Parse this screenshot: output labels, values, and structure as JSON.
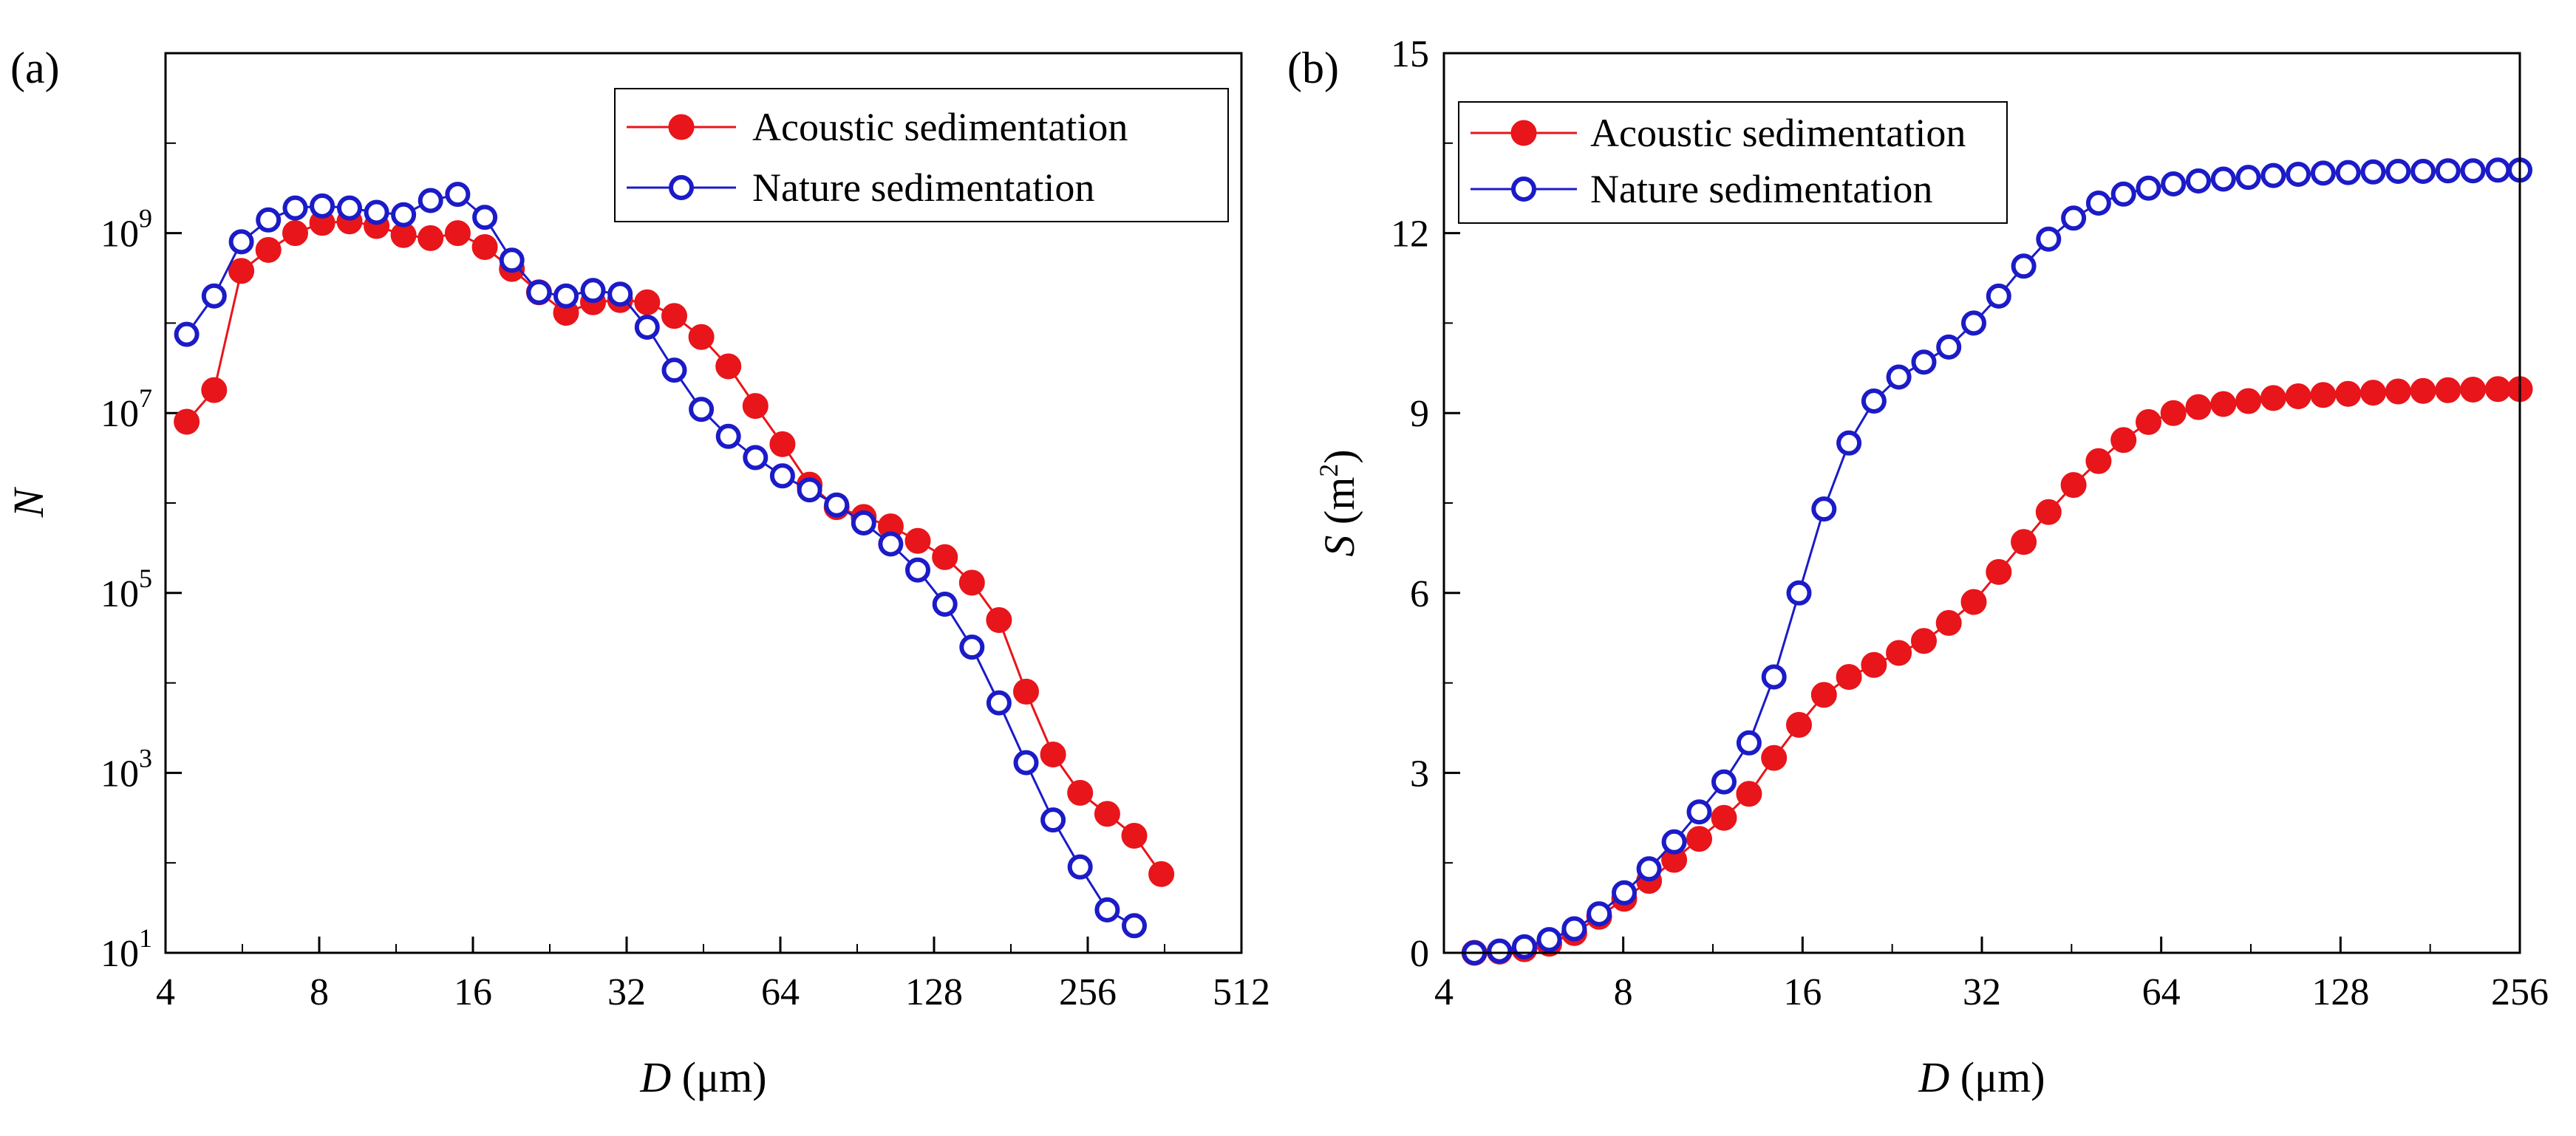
{
  "chart_data": [
    {
      "type": "line",
      "panel_label": "(a)",
      "xlabel": "D (μm)",
      "xlabel_var": "D",
      "xlabel_unit": " (μm)",
      "ylabel": "N",
      "x_scale": "log2",
      "y_scale": "log10",
      "xlim": [
        4,
        512
      ],
      "ylim": [
        10,
        100000000000
      ],
      "x_ticks": [
        4,
        8,
        16,
        32,
        64,
        128,
        256,
        512
      ],
      "x_tick_labels": [
        "4",
        "8",
        "16",
        "32",
        "64",
        "128",
        "256",
        "512"
      ],
      "y_ticks": [
        10,
        1000,
        100000,
        10000000,
        1000000000
      ],
      "y_tick_labels": [
        {
          "base": "10",
          "exp": "1"
        },
        {
          "base": "10",
          "exp": "3"
        },
        {
          "base": "10",
          "exp": "5"
        },
        {
          "base": "10",
          "exp": "7"
        },
        {
          "base": "10",
          "exp": "9"
        }
      ],
      "legend_position": "top-right",
      "series": [
        {
          "name": "Acoustic sedimentation",
          "color": "#e8151b",
          "marker": "filled-circle",
          "x": [
            4.4,
            4.98,
            5.63,
            6.36,
            7.18,
            8.11,
            9.17,
            10.36,
            11.7,
            13.22,
            14.94,
            16.88,
            19.07,
            21.55,
            24.35,
            27.5,
            31.08,
            35.11,
            39.67,
            44.82,
            50.64,
            57.21,
            64.63,
            73.02,
            82.5,
            93.2,
            105.3,
            118.97,
            134.41,
            151.85,
            171.56,
            193.82,
            218.98,
            247.39,
            279.5,
            315.77,
            356.74
          ],
          "y": [
            8000000,
            18000000,
            380000000,
            650000000,
            1000000000,
            1300000000,
            1350000000,
            1200000000,
            950000000,
            880000000,
            1000000000,
            700000000,
            400000000,
            220000000,
            130000000,
            170000000,
            180000000,
            170000000,
            120000000,
            70000000,
            33000000,
            12000000,
            4500000,
            1600000,
            900000,
            700000,
            550000,
            380000,
            250000,
            130000,
            50000,
            8000,
            1600,
            600,
            350,
            200,
            75
          ]
        },
        {
          "name": "Nature sedimentation",
          "color": "#1b1bc8",
          "marker": "open-circle",
          "x": [
            4.4,
            4.98,
            5.63,
            6.36,
            7.18,
            8.11,
            9.17,
            10.36,
            11.7,
            13.22,
            14.94,
            16.88,
            19.07,
            21.55,
            24.35,
            27.5,
            31.08,
            35.11,
            39.67,
            44.82,
            50.64,
            57.21,
            64.63,
            73.02,
            82.5,
            93.2,
            105.3,
            118.97,
            134.41,
            151.85,
            171.56,
            193.82,
            218.98,
            247.39,
            279.5,
            315.77
          ],
          "y": [
            75000000,
            200000000,
            800000000,
            1400000000,
            1900000000,
            2000000000,
            1900000000,
            1700000000,
            1600000000,
            2300000000,
            2700000000,
            1500000000,
            500000000,
            220000000,
            200000000,
            230000000,
            210000000,
            90000000,
            30000000,
            11000000,
            5500000,
            3200000,
            2000000,
            1400000,
            950000,
            600000,
            350000,
            180000,
            75000,
            25000,
            6000,
            1300,
            300,
            90,
            30,
            20
          ]
        }
      ]
    },
    {
      "type": "line",
      "panel_label": "(b)",
      "xlabel": "D (μm)",
      "xlabel_var": "D",
      "xlabel_unit": " (μm)",
      "ylabel": "S (m2)",
      "ylabel_var": "S",
      "ylabel_unit_pre": " (m",
      "ylabel_unit_sup": "2",
      "ylabel_unit_post": ")",
      "x_scale": "log2",
      "y_scale": "linear",
      "xlim": [
        4,
        256
      ],
      "ylim": [
        0,
        15
      ],
      "x_ticks": [
        4,
        8,
        16,
        32,
        64,
        128,
        256
      ],
      "x_tick_labels": [
        "4",
        "8",
        "16",
        "32",
        "64",
        "128",
        "256"
      ],
      "y_ticks": [
        0,
        3,
        6,
        9,
        12,
        15
      ],
      "y_tick_labels": [
        "0",
        "3",
        "6",
        "9",
        "12",
        "15"
      ],
      "legend_position": "top-left",
      "series": [
        {
          "name": "Acoustic sedimentation",
          "color": "#e8151b",
          "marker": "filled-circle",
          "x": [
            4.5,
            4.96,
            5.46,
            6.01,
            6.62,
            7.29,
            8.03,
            8.84,
            9.74,
            10.73,
            11.81,
            13.01,
            14.33,
            15.78,
            17.38,
            19.14,
            21.08,
            23.21,
            25.57,
            28.16,
            31.01,
            34.15,
            37.61,
            41.42,
            45.62,
            50.24,
            55.33,
            60.93,
            67.1,
            73.9,
            81.39,
            89.63,
            98.71,
            108.71,
            119.72,
            131.85,
            145.21,
            159.92,
            176.12,
            193.96,
            213.61,
            235.25,
            256.0
          ],
          "y": [
            0.0,
            0.02,
            0.06,
            0.15,
            0.33,
            0.6,
            0.9,
            1.2,
            1.55,
            1.9,
            2.25,
            2.65,
            3.25,
            3.8,
            4.3,
            4.6,
            4.8,
            5.0,
            5.2,
            5.5,
            5.85,
            6.35,
            6.85,
            7.35,
            7.8,
            8.2,
            8.55,
            8.85,
            9.0,
            9.1,
            9.15,
            9.2,
            9.25,
            9.28,
            9.3,
            9.32,
            9.34,
            9.36,
            9.37,
            9.38,
            9.39,
            9.4,
            9.4
          ]
        },
        {
          "name": "Nature sedimentation",
          "color": "#1b1bc8",
          "marker": "open-circle",
          "x": [
            4.5,
            4.96,
            5.46,
            6.01,
            6.62,
            7.29,
            8.03,
            8.84,
            9.74,
            10.73,
            11.81,
            13.01,
            14.33,
            15.78,
            17.38,
            19.14,
            21.08,
            23.21,
            25.57,
            28.16,
            31.01,
            34.15,
            37.61,
            41.42,
            45.62,
            50.24,
            55.33,
            60.93,
            67.1,
            73.9,
            81.39,
            89.63,
            98.71,
            108.71,
            119.72,
            131.85,
            145.21,
            159.92,
            176.12,
            193.96,
            213.61,
            235.25,
            256.0
          ],
          "y": [
            0.0,
            0.03,
            0.1,
            0.22,
            0.4,
            0.65,
            1.0,
            1.4,
            1.85,
            2.35,
            2.85,
            3.5,
            4.6,
            6.0,
            7.4,
            8.5,
            9.2,
            9.6,
            9.85,
            10.1,
            10.5,
            10.95,
            11.45,
            11.9,
            12.25,
            12.5,
            12.65,
            12.75,
            12.82,
            12.87,
            12.9,
            12.93,
            12.96,
            12.98,
            13.0,
            13.01,
            13.02,
            13.03,
            13.03,
            13.04,
            13.04,
            13.05,
            13.05
          ]
        }
      ]
    }
  ]
}
